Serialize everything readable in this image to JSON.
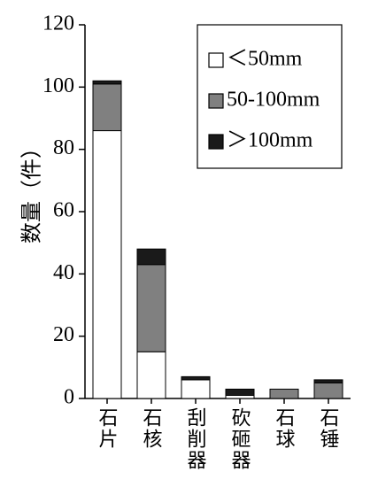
{
  "chart_data": {
    "type": "stacked-bar",
    "y_label": "数量（件）",
    "categories": [
      "石片",
      "石核",
      "刮削器",
      "砍砸器",
      "石球",
      "石锤"
    ],
    "series": [
      {
        "name": "＜50mm",
        "color": "#ffffff",
        "values": [
          86,
          15,
          6,
          1,
          0,
          0
        ]
      },
      {
        "name": "50-100mm",
        "color": "#808080",
        "values": [
          15,
          28,
          0,
          0,
          3,
          5
        ]
      },
      {
        "name": "＞100mm",
        "color": "#1a1a1a",
        "values": [
          1,
          5,
          1,
          2,
          0,
          1
        ]
      }
    ],
    "ylim": [
      0,
      120
    ],
    "yticks": [
      0,
      20,
      40,
      60,
      80,
      100,
      120
    ],
    "legend": "upper right"
  }
}
